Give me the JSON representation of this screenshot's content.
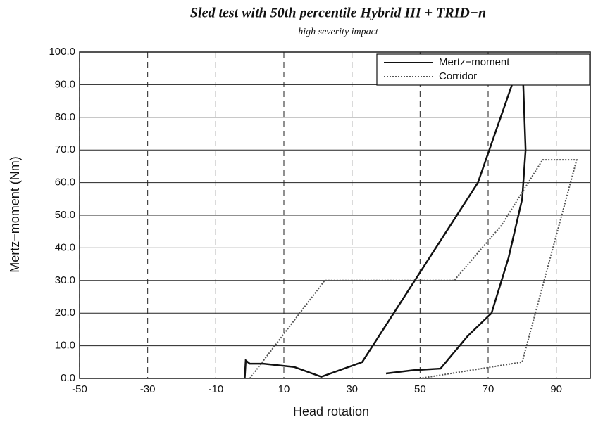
{
  "chart_data": {
    "type": "line",
    "title": "Sled test with 50th percentile Hybrid III + TRID−n",
    "subtitle": "high severity impact",
    "x_label": "Head rotation",
    "y_label": "Mertz−moment   (Nm)",
    "xlim": [
      -50,
      100
    ],
    "xticks": [
      -50,
      -30,
      -10,
      10,
      30,
      50,
      70,
      90
    ],
    "ylim": [
      0,
      100
    ],
    "yticks": [
      {
        "value": 0,
        "label": "0.0"
      },
      {
        "value": 10,
        "label": "10.0"
      },
      {
        "value": 20,
        "label": "20.0"
      },
      {
        "value": 30,
        "label": "30.0"
      },
      {
        "value": 40,
        "label": "40.0"
      },
      {
        "value": 50,
        "label": "50.0"
      },
      {
        "value": 60,
        "label": "60.0"
      },
      {
        "value": 70,
        "label": "70.0"
      },
      {
        "value": 80,
        "label": "80.0"
      },
      {
        "value": 90,
        "label": "90.0"
      },
      {
        "value": 100,
        "label": "100.0"
      }
    ],
    "grid": true,
    "legend": "upper right",
    "series": [
      {
        "name": "Mertz−moment",
        "color": "#111111",
        "style": "solid",
        "x": [
          -1.5,
          -1.2,
          0,
          4,
          13,
          21,
          33,
          67,
          77,
          80,
          81,
          80,
          76,
          71,
          64,
          56,
          48,
          40
        ],
        "values": [
          0,
          5.5,
          4.5,
          4.5,
          3.5,
          0.5,
          5,
          60,
          90,
          99,
          70,
          55,
          37,
          20,
          13,
          3,
          2.5,
          1.5
        ]
      },
      {
        "name": "Corridor",
        "color": "#555555",
        "style": "dotted",
        "x": [
          0,
          22,
          60,
          74,
          86,
          96,
          80,
          50
        ],
        "values": [
          0,
          30,
          30,
          47,
          67,
          67,
          5,
          0
        ]
      }
    ]
  }
}
